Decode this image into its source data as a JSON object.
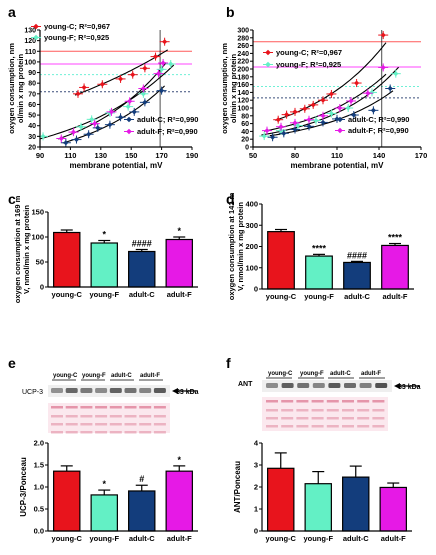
{
  "colors": {
    "young_c": "#e8141c",
    "young_f": "#63f0c5",
    "adult_c": "#133d7c",
    "adult_f": "#e619e6",
    "red_ref": "#ff5a5a",
    "pink_ref": "#ff44ff",
    "cyan_ref": "#6ff0d6",
    "blue_ref": "#3a4d7a",
    "black_ref": "#555555"
  },
  "chart_data": [
    {
      "panel": "a",
      "type": "scatter",
      "xlabel": "membrane potential, mV",
      "ylabel": "oxygen consumption, nmol/min x mg protein",
      "xlim": [
        90,
        190
      ],
      "ylim": [
        20,
        130
      ],
      "xticks": [
        "90",
        "110",
        "130",
        "150",
        "170",
        "190"
      ],
      "yticks": [
        "20",
        "30",
        "40",
        "50",
        "60",
        "70",
        "80",
        "90",
        "100",
        "110",
        "120",
        "130"
      ],
      "legend": [
        "young-C; R²=0,967",
        "young-F; R²=0,925",
        "adult-C; R²=0,990",
        "adult-F; R²=0,990"
      ],
      "series": [
        {
          "name": "young-C",
          "points": [
            [
              115,
              70
            ],
            [
              119,
              76
            ],
            [
              131,
              79
            ],
            [
              143,
              84
            ],
            [
              151,
              88
            ],
            [
              159,
              94
            ],
            [
              166,
              105
            ],
            [
              172,
              119
            ]
          ]
        },
        {
          "name": "young-F",
          "points": [
            [
              92,
              30
            ],
            [
              117,
              39
            ],
            [
              124,
              46
            ],
            [
              136,
              52
            ],
            [
              148,
              58
            ],
            [
              158,
              70
            ],
            [
              170,
              93
            ],
            [
              176,
              98
            ]
          ]
        },
        {
          "name": "adult-C",
          "points": [
            [
              107,
              24
            ],
            [
              114,
              27
            ],
            [
              122,
              32
            ],
            [
              128,
              38
            ],
            [
              136,
              41
            ],
            [
              143,
              48
            ],
            [
              152,
              53
            ],
            [
              159,
              62
            ],
            [
              170,
              73
            ]
          ]
        },
        {
          "name": "adult-F",
          "points": [
            [
              104,
              28
            ],
            [
              112,
              34
            ],
            [
              126,
              42
            ],
            [
              137,
              53
            ],
            [
              149,
              63
            ],
            [
              158,
              75
            ],
            [
              168,
              89
            ],
            [
              171,
              99
            ]
          ]
        }
      ],
      "ref_lines_y": [
        110,
        98,
        88,
        72
      ],
      "ref_line_x": 169
    },
    {
      "panel": "b",
      "type": "scatter",
      "xlabel": "membrane potential, mV",
      "ylabel": "oxygen consumption, nmol/min x mg protein",
      "xlim": [
        50,
        170
      ],
      "ylim": [
        0,
        300
      ],
      "xticks": [
        "50",
        "80",
        "110",
        "140",
        "170"
      ],
      "yticks": [
        "0",
        "20",
        "40",
        "60",
        "80",
        "100",
        "120",
        "140",
        "160",
        "180",
        "200",
        "220",
        "240",
        "260",
        "280",
        "300"
      ],
      "legend": [
        "young-C; R²=0,967",
        "young-F; R²=0,925",
        "adult-C; R²=0,990",
        "adult-F; R²=0,990"
      ],
      "series": [
        {
          "name": "young-C",
          "points": [
            [
              68,
              70
            ],
            [
              74,
              83
            ],
            [
              80,
              90
            ],
            [
              87,
              98
            ],
            [
              93,
              108
            ],
            [
              100,
              120
            ],
            [
              106,
              136
            ],
            [
              124,
              164
            ],
            [
              143,
              287
            ]
          ]
        },
        {
          "name": "young-F",
          "points": [
            [
              58,
              28
            ],
            [
              70,
              42
            ],
            [
              82,
              55
            ],
            [
              95,
              68
            ],
            [
              106,
              86
            ],
            [
              118,
              100
            ],
            [
              135,
              140
            ],
            [
              152,
              188
            ]
          ]
        },
        {
          "name": "adult-C",
          "points": [
            [
              64,
              25
            ],
            [
              72,
              35
            ],
            [
              80,
              45
            ],
            [
              90,
              53
            ],
            [
              100,
              63
            ],
            [
              110,
              72
            ],
            [
              122,
              82
            ],
            [
              136,
              94
            ],
            [
              148,
              150
            ]
          ]
        },
        {
          "name": "adult-F",
          "points": [
            [
              60,
              42
            ],
            [
              70,
              52
            ],
            [
              80,
              62
            ],
            [
              90,
              70
            ],
            [
              100,
              80
            ],
            [
              112,
              100
            ],
            [
              120,
              118
            ],
            [
              132,
              138
            ],
            [
              143,
              204
            ]
          ]
        }
      ],
      "ref_lines_y": [
        270,
        205,
        155,
        126
      ],
      "ref_line_x": 142
    },
    {
      "panel": "c",
      "type": "bar",
      "ylabel": "oxygen consumption at 169 mV, nmol/min x mg protein",
      "categories": [
        "young-C",
        "young-F",
        "adult-C",
        "adult-F"
      ],
      "values": [
        109,
        88,
        71,
        95
      ],
      "errors": [
        5,
        5,
        4,
        5
      ],
      "annotations": [
        "",
        "*",
        "####",
        "*"
      ],
      "ylim": [
        0,
        150
      ],
      "yticks": [
        "0",
        "50",
        "100",
        "150"
      ]
    },
    {
      "panel": "d",
      "type": "bar",
      "ylabel": "oxygen consumption at 142 mV, nmol/min x mg protein",
      "categories": [
        "young-C",
        "young-F",
        "adult-C",
        "adult-F"
      ],
      "values": [
        270,
        155,
        125,
        205
      ],
      "errors": [
        10,
        8,
        5,
        9
      ],
      "annotations": [
        "",
        "****",
        "####",
        "****"
      ],
      "ylim": [
        0,
        400
      ],
      "yticks": [
        "0",
        "100",
        "200",
        "300",
        "400"
      ]
    },
    {
      "panel": "e",
      "type": "bar",
      "ylabel": "UCP-3/Ponceau",
      "categories": [
        "young-C",
        "young-F",
        "adult-C",
        "adult-F"
      ],
      "values": [
        1.36,
        0.82,
        0.91,
        1.36
      ],
      "errors": [
        0.12,
        0.11,
        0.13,
        0.12
      ],
      "annotations": [
        "",
        "*",
        "#",
        "*"
      ],
      "ylim": [
        0,
        2.0
      ],
      "yticks": [
        "0.0",
        "0.5",
        "1.0",
        "1.5",
        "2.0"
      ]
    },
    {
      "panel": "f",
      "type": "bar",
      "ylabel": "ANT/Ponceau",
      "categories": [
        "young-C",
        "young-F",
        "adult-C",
        "adult-F"
      ],
      "values": [
        2.85,
        2.15,
        2.45,
        1.98
      ],
      "errors": [
        0.7,
        0.55,
        0.5,
        0.2
      ],
      "annotations": [
        "",
        "",
        "",
        ""
      ],
      "ylim": [
        0,
        4
      ],
      "yticks": [
        "0",
        "1",
        "2",
        "3",
        "4"
      ]
    }
  ],
  "blots": {
    "e": {
      "panel": "e",
      "protein": "UCP-3",
      "marker": "33 kDa",
      "groups": [
        "young-C",
        "young-F",
        "adult-C",
        "adult-F"
      ]
    },
    "f": {
      "panel": "f",
      "protein": "ANT",
      "marker": "33 kDa",
      "groups": [
        "young-C",
        "young-F",
        "adult-C",
        "adult-F"
      ]
    }
  }
}
